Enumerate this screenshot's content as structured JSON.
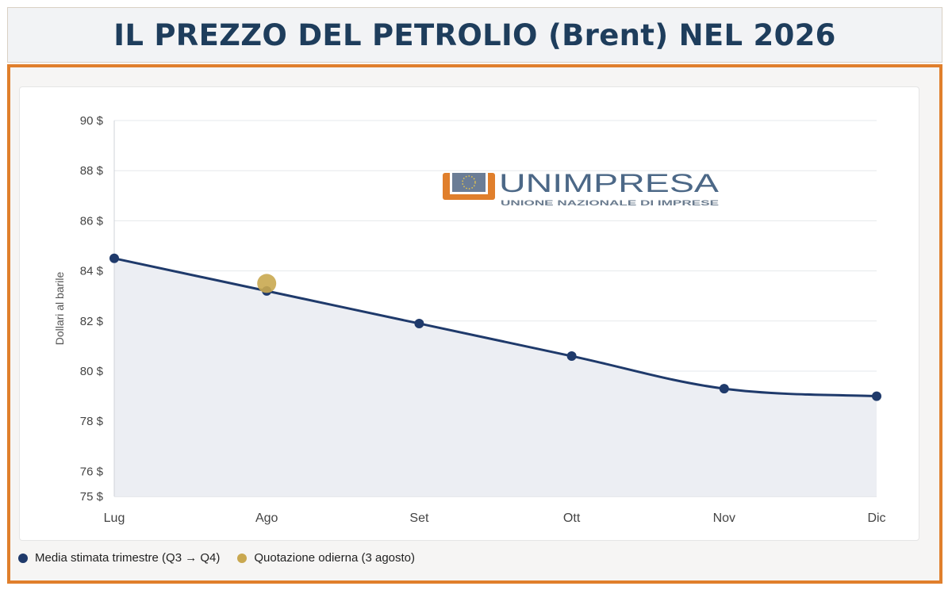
{
  "header": {
    "title": "IL PREZZO DEL PETROLIO (Brent) NEL 2026"
  },
  "watermark": {
    "name": "UNIMPRESA",
    "tagline": "UNIONE NAZIONALE DI IMPRESE"
  },
  "colors": {
    "line": "#1f3a6b",
    "spot": "#c9a850",
    "area": "#eceef3",
    "accent": "#e07f2c"
  },
  "chart_data": {
    "type": "line",
    "title": "IL PREZZO DEL PETROLIO (Brent) NEL 2026",
    "ylabel": "Dollari al barile",
    "xlabel": "",
    "ylim": [
      75,
      90
    ],
    "y_ticks": [
      {
        "value": 90,
        "label": "90 $"
      },
      {
        "value": 88,
        "label": "88 $"
      },
      {
        "value": 86,
        "label": "86 $"
      },
      {
        "value": 84,
        "label": "84 $"
      },
      {
        "value": 82,
        "label": "82 $"
      },
      {
        "value": 80,
        "label": "80 $"
      },
      {
        "value": 78,
        "label": "78 $"
      },
      {
        "value": 76,
        "label": "76 $"
      },
      {
        "value": 75,
        "label": "75 $"
      }
    ],
    "categories": [
      "Lug",
      "Ago",
      "Set",
      "Ott",
      "Nov",
      "Dic"
    ],
    "series": [
      {
        "name": "Media stimata trimestre (Q3 → Q4)",
        "values": [
          84.5,
          83.2,
          81.9,
          80.6,
          79.3,
          79.0
        ],
        "color": "#1f3a6b"
      },
      {
        "name": "Quotazione odierna (3 agosto)",
        "points": [
          {
            "category": "Ago",
            "value": 83.5
          }
        ],
        "color": "#c9a850"
      }
    ],
    "grid": true,
    "legend_position": "bottom-left"
  }
}
